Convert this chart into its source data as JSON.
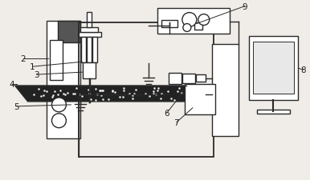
{
  "bg_color": "#f0ede8",
  "line_color": "#2a2a2a",
  "lw": 1.0,
  "fig_width": 3.86,
  "fig_height": 2.26
}
